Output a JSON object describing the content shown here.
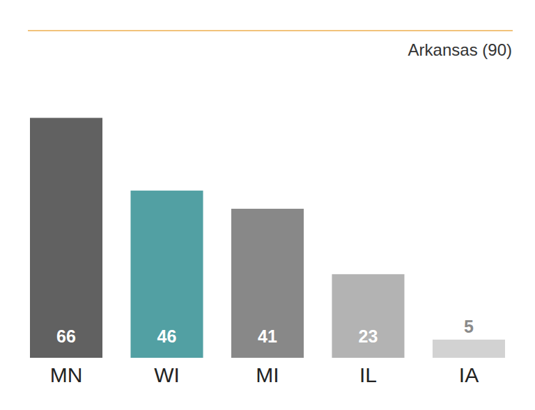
{
  "chart_data": {
    "type": "bar",
    "categories": [
      "MN",
      "WI",
      "MI",
      "IL",
      "IA"
    ],
    "values": [
      66,
      46,
      41,
      23,
      5
    ],
    "colors": [
      "#616161",
      "#52a0a3",
      "#888888",
      "#b3b3b3",
      "#d2d2d2"
    ],
    "ylim": [
      0,
      90
    ],
    "data_labels": true,
    "tick_labels": "x",
    "annotations": [
      {
        "y": 90,
        "text": "Arkansas (90)"
      }
    ]
  }
}
